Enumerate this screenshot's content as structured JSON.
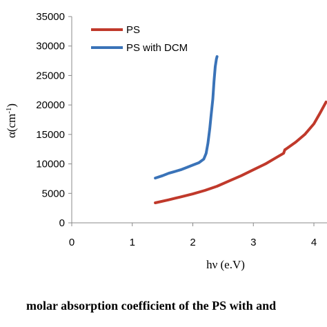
{
  "chart_data": {
    "type": "line",
    "title": "",
    "xlabel": "hν (e.V)",
    "ylabel_main": "α(cm",
    "ylabel_sup": "-1",
    "ylabel_close": ")",
    "xlim": [
      0,
      4.2
    ],
    "ylim": [
      0,
      35000
    ],
    "xticks": [
      "0",
      "1",
      "2",
      "3",
      "4"
    ],
    "yticks": [
      "0",
      "5000",
      "10000",
      "15000",
      "20000",
      "25000",
      "30000",
      "35000"
    ],
    "grid": false,
    "legend": "top-left",
    "series": [
      {
        "name": "PS",
        "color": "#c0392b",
        "x": [
          1.38,
          1.6,
          1.8,
          2.0,
          2.2,
          2.4,
          2.6,
          2.8,
          3.0,
          3.2,
          3.4,
          3.5,
          3.52,
          3.55,
          3.7,
          3.85,
          4.0,
          4.1,
          4.2
        ],
        "y": [
          3400,
          3900,
          4400,
          4900,
          5500,
          6200,
          7100,
          8000,
          9000,
          10000,
          11200,
          11800,
          12400,
          12600,
          13700,
          15000,
          16800,
          18600,
          20500
        ]
      },
      {
        "name": "PS with DCM",
        "color": "#3a73b8",
        "x": [
          1.38,
          1.5,
          1.6,
          1.7,
          1.8,
          1.9,
          2.0,
          2.1,
          2.18,
          2.22,
          2.25,
          2.28,
          2.3,
          2.33,
          2.35,
          2.37,
          2.39,
          2.4
        ],
        "y": [
          7600,
          8000,
          8400,
          8700,
          9000,
          9400,
          9800,
          10200,
          10800,
          11800,
          13500,
          16000,
          18000,
          21000,
          24000,
          26500,
          27800,
          28200
        ]
      }
    ]
  },
  "caption": "molar absorption coefficient of the PS with and"
}
